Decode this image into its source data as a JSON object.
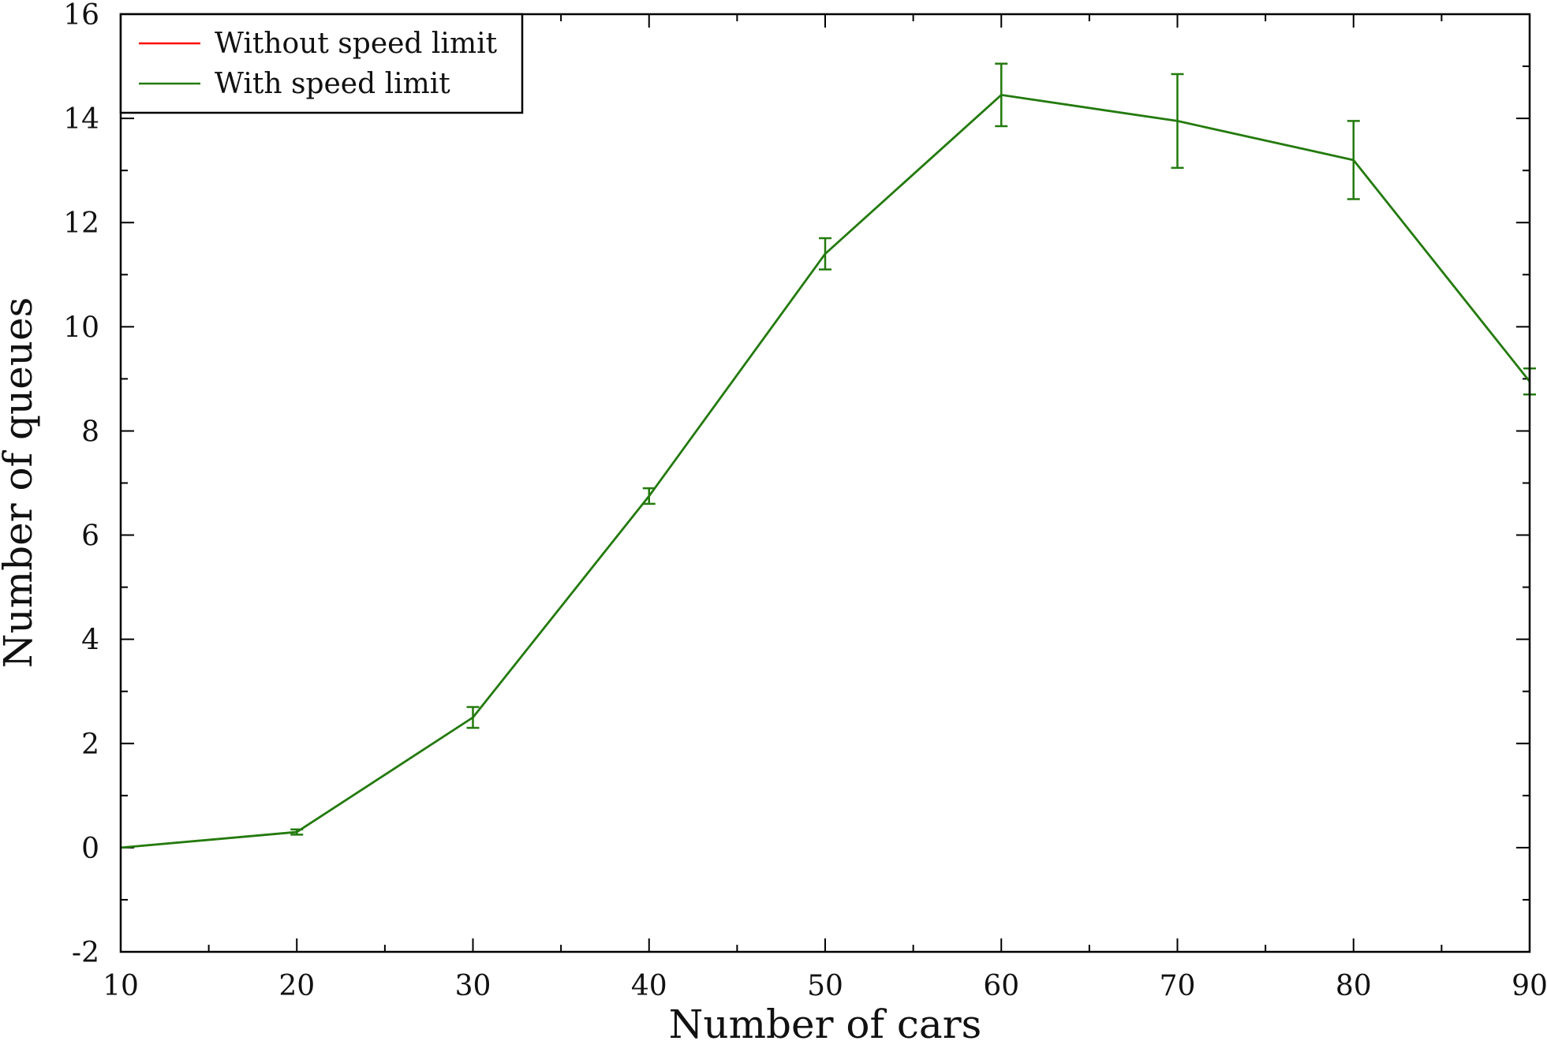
{
  "chart_data": {
    "type": "line",
    "xlabel": "Number of cars",
    "ylabel": "Number of queues",
    "xlim": [
      10,
      90
    ],
    "ylim": [
      -2,
      16
    ],
    "xticks": [
      10,
      20,
      30,
      40,
      50,
      60,
      70,
      80,
      90
    ],
    "yticks": [
      -2,
      0,
      2,
      4,
      6,
      8,
      10,
      12,
      14,
      16
    ],
    "legend_position": "top-left",
    "grid": false,
    "series": [
      {
        "name": "Without speed limit",
        "color": "#ff0000",
        "x": [],
        "values": [],
        "errors": []
      },
      {
        "name": "With speed limit",
        "color": "#237a0d",
        "x": [
          10,
          20,
          30,
          40,
          50,
          60,
          70,
          80,
          90
        ],
        "values": [
          0.0,
          0.3,
          2.5,
          6.75,
          11.4,
          14.45,
          13.95,
          13.2,
          8.95
        ],
        "errors": [
          0.0,
          0.05,
          0.2,
          0.15,
          0.3,
          0.6,
          0.9,
          0.75,
          0.25
        ]
      }
    ]
  }
}
